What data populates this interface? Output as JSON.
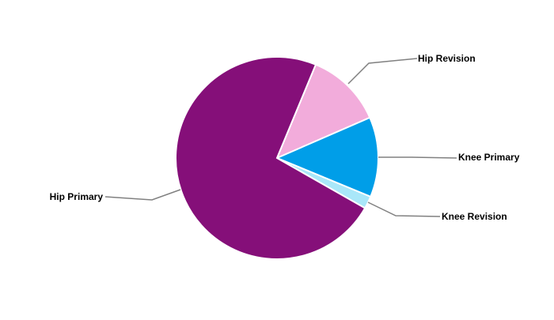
{
  "chart_data": {
    "type": "pie",
    "title": "",
    "start_angle_deg": 22.5,
    "direction": "clockwise",
    "slices": [
      {
        "label": "Hip Revision",
        "value": 12.2,
        "color": "#F2ACDB"
      },
      {
        "label": "Knee Primary",
        "value": 12.8,
        "color": "#009EE8"
      },
      {
        "label": "Knee Revision",
        "value": 2.0,
        "color": "#A9E7F9"
      },
      {
        "label": "Hip Primary",
        "value": 73.0,
        "color": "#850F79"
      }
    ],
    "leader_line_color": "#808080",
    "legend": "none (callout labels)"
  }
}
